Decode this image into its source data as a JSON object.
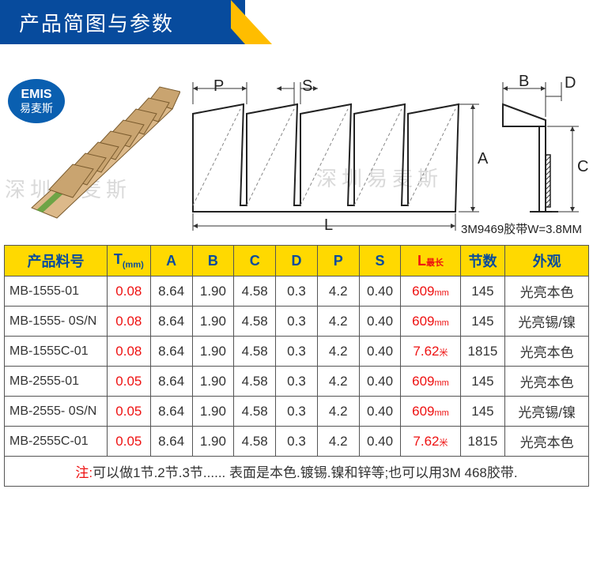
{
  "header": {
    "title": "产品简图与参数"
  },
  "badge": {
    "line1": "EMIS",
    "line2": "易麦斯"
  },
  "watermark": "深圳易麦斯",
  "diagram": {
    "labels": {
      "P": "P",
      "S": "S",
      "L": "L",
      "A": "A",
      "B": "B",
      "C": "C",
      "D": "D"
    },
    "tape_note": "3M9469胶带W=3.8MM"
  },
  "table": {
    "headers": {
      "pn": "产品料号",
      "t": "T",
      "t_unit": "(mm)",
      "a": "A",
      "b": "B",
      "c": "C",
      "d": "D",
      "p": "P",
      "s": "S",
      "l": "L",
      "l_sub": "最长",
      "segments": "节数",
      "appearance": "外观"
    },
    "rows": [
      {
        "pn": "MB-1555-01",
        "t": "0.08",
        "a": "8.64",
        "b": "1.90",
        "c": "4.58",
        "d": "0.3",
        "p": "4.2",
        "s": "0.40",
        "l": "609",
        "l_unit": "mm",
        "seg": "145",
        "app": "光亮本色"
      },
      {
        "pn": "MB-1555- 0S/N",
        "t": "0.08",
        "a": "8.64",
        "b": "1.90",
        "c": "4.58",
        "d": "0.3",
        "p": "4.2",
        "s": "0.40",
        "l": "609",
        "l_unit": "mm",
        "seg": "145",
        "app": "光亮锡/镍"
      },
      {
        "pn": "MB-1555C-01",
        "t": "0.08",
        "a": "8.64",
        "b": "1.90",
        "c": "4.58",
        "d": "0.3",
        "p": "4.2",
        "s": "0.40",
        "l": "7.62",
        "l_unit": "米",
        "seg": "1815",
        "app": "光亮本色"
      },
      {
        "pn": "MB-2555-01",
        "t": "0.05",
        "a": "8.64",
        "b": "1.90",
        "c": "4.58",
        "d": "0.3",
        "p": "4.2",
        "s": "0.40",
        "l": "609",
        "l_unit": "mm",
        "seg": "145",
        "app": "光亮本色"
      },
      {
        "pn": "MB-2555- 0S/N",
        "t": "0.05",
        "a": "8.64",
        "b": "1.90",
        "c": "4.58",
        "d": "0.3",
        "p": "4.2",
        "s": "0.40",
        "l": "609",
        "l_unit": "mm",
        "seg": "145",
        "app": "光亮锡/镍"
      },
      {
        "pn": "MB-2555C-01",
        "t": "0.05",
        "a": "8.64",
        "b": "1.90",
        "c": "4.58",
        "d": "0.3",
        "p": "4.2",
        "s": "0.40",
        "l": "7.62",
        "l_unit": "米",
        "seg": "1815",
        "app": "光亮本色"
      }
    ],
    "note_label": "注:",
    "note_text": "可以做1节.2节.3节...... 表面是本色.镀锡.镍和锌等;也可以用3M 468胶带."
  },
  "colors": {
    "header_blue": "#074b9d",
    "accent_yellow": "#ffbd00",
    "table_header_yellow": "#ffd900",
    "red": "#ee1111",
    "watermark_gray": "#d9d9d9",
    "product_tan": "#dcb98a",
    "product_tan_dark": "#c9a470",
    "tape_green": "#5aa03a"
  }
}
